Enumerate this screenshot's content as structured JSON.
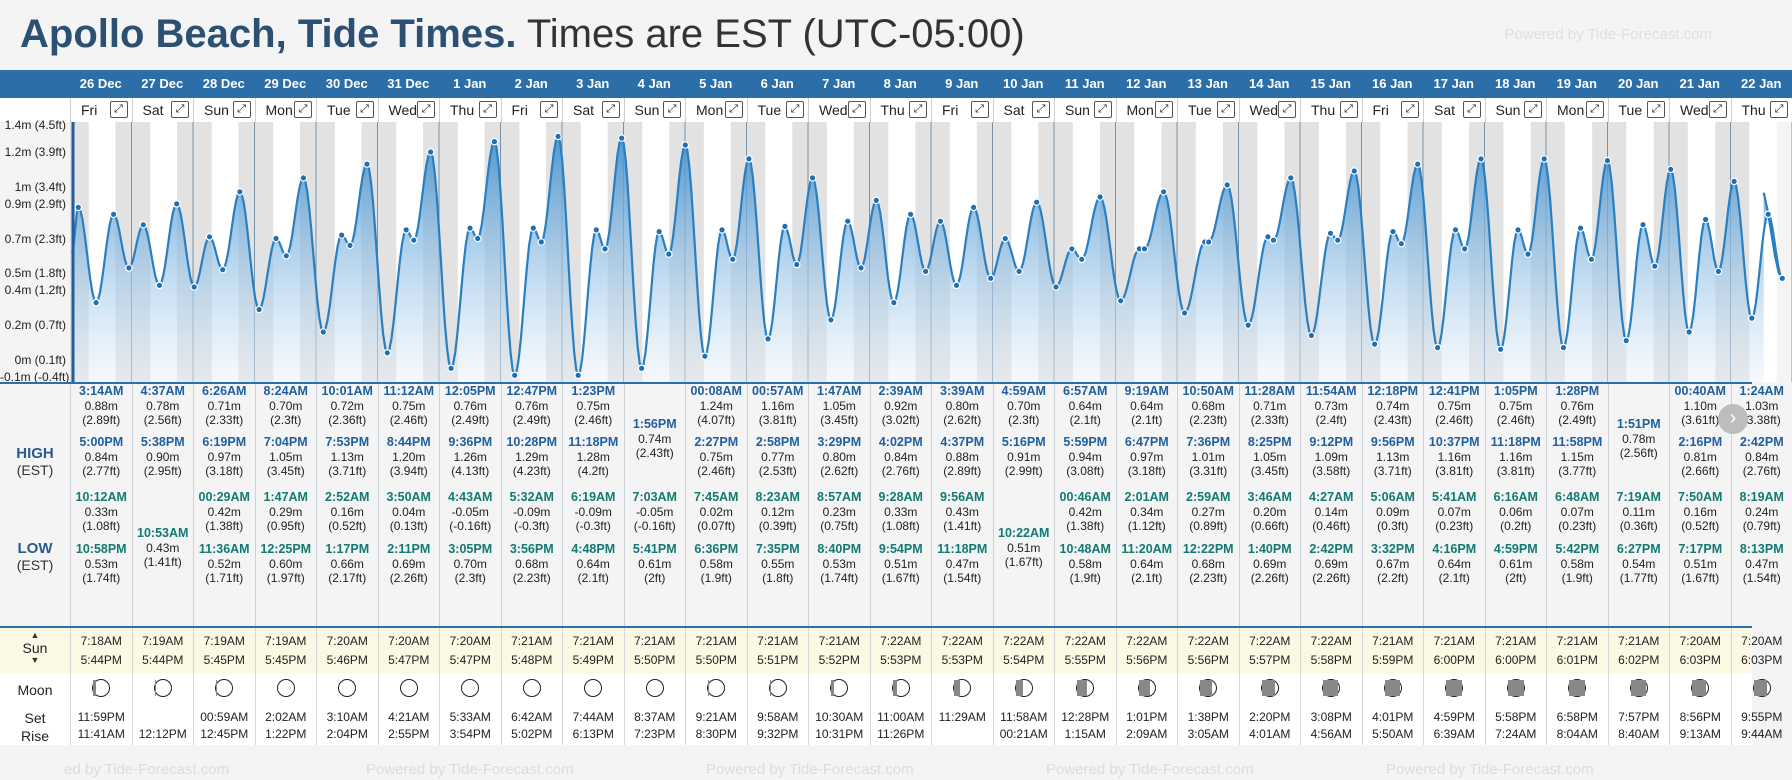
{
  "header": {
    "location": "Apollo Beach, Tide Times.",
    "timezone": "Times are EST (UTC-05:00)",
    "watermark": "Powered by Tide-Forecast.com",
    "bottom_watermark": "Powered by Tide-Forecast.com",
    "bottom_watermark_left": "ed by Tide-Forecast.com"
  },
  "y_axis": {
    "labels": [
      "1.2m (3.9ft)",
      "1m (3.4ft)",
      "0.9m (2.9ft)",
      "0.7m (2.3ft)",
      "0.5m (1.8ft)",
      "0.4m (1.2ft)",
      "0.2m (0.7ft)",
      "0m (0.1ft)",
      "-0.1m (-0.4ft)"
    ],
    "values": [
      1.2,
      1.0,
      0.9,
      0.7,
      0.5,
      0.4,
      0.2,
      0.0,
      -0.1
    ],
    "top_cut_label": "1.4m (4.5ft)",
    "range": [
      -0.1,
      1.35
    ]
  },
  "labels": {
    "high": "HIGH",
    "high_tz": "(EST)",
    "low": "LOW",
    "low_tz": "(EST)",
    "sun": "Sun",
    "moon": "Moon",
    "set": "Set",
    "rise": "Rise",
    "expand_icon": "⤢",
    "next_icon": "›"
  },
  "days": [
    {
      "date": "26 Dec",
      "dow": "Fri",
      "high": [
        {
          "t": "3:14AM",
          "m": "0.88m",
          "f": "(2.89ft)"
        },
        {
          "t": "5:00PM",
          "m": "0.84m",
          "f": "(2.77ft)"
        }
      ],
      "low": [
        {
          "t": "10:12AM",
          "m": "0.33m",
          "f": "(1.08ft)"
        },
        {
          "t": "10:58PM",
          "m": "0.53m",
          "f": "(1.74ft)"
        }
      ],
      "sunrise": "7:18AM",
      "sunset": "5:44PM",
      "phase": 0.85,
      "moonset": "11:59PM",
      "moonrise": "11:41AM"
    },
    {
      "date": "27 Dec",
      "dow": "Sat",
      "high": [
        {
          "t": "4:37AM",
          "m": "0.78m",
          "f": "(2.56ft)"
        },
        {
          "t": "5:38PM",
          "m": "0.90m",
          "f": "(2.95ft)"
        }
      ],
      "low": [
        {
          "t": "10:53AM",
          "m": "0.43m",
          "f": "(1.41ft)"
        }
      ],
      "sunrise": "7:19AM",
      "sunset": "5:44PM",
      "phase": 0.9,
      "moonset": "",
      "moonrise": "12:12PM"
    },
    {
      "date": "28 Dec",
      "dow": "Sun",
      "high": [
        {
          "t": "6:26AM",
          "m": "0.71m",
          "f": "(2.33ft)"
        },
        {
          "t": "6:19PM",
          "m": "0.97m",
          "f": "(3.18ft)"
        }
      ],
      "low": [
        {
          "t": "00:29AM",
          "m": "0.42m",
          "f": "(1.38ft)"
        },
        {
          "t": "11:36AM",
          "m": "0.52m",
          "f": "(1.71ft)"
        }
      ],
      "sunrise": "7:19AM",
      "sunset": "5:45PM",
      "phase": 0.95,
      "moonset": "00:59AM",
      "moonrise": "12:45PM"
    },
    {
      "date": "29 Dec",
      "dow": "Mon",
      "high": [
        {
          "t": "8:24AM",
          "m": "0.70m",
          "f": "(2.3ft)"
        },
        {
          "t": "7:04PM",
          "m": "1.05m",
          "f": "(3.45ft)"
        }
      ],
      "low": [
        {
          "t": "1:47AM",
          "m": "0.29m",
          "f": "(0.95ft)"
        },
        {
          "t": "12:25PM",
          "m": "0.60m",
          "f": "(1.97ft)"
        }
      ],
      "sunrise": "7:19AM",
      "sunset": "5:45PM",
      "phase": 1.0,
      "moonset": "2:02AM",
      "moonrise": "1:22PM"
    },
    {
      "date": "30 Dec",
      "dow": "Tue",
      "high": [
        {
          "t": "10:01AM",
          "m": "0.72m",
          "f": "(2.36ft)"
        },
        {
          "t": "7:53PM",
          "m": "1.13m",
          "f": "(3.71ft)"
        }
      ],
      "low": [
        {
          "t": "2:52AM",
          "m": "0.16m",
          "f": "(0.52ft)"
        },
        {
          "t": "1:17PM",
          "m": "0.66m",
          "f": "(2.17ft)"
        }
      ],
      "sunrise": "7:20AM",
      "sunset": "5:46PM",
      "phase": 1.0,
      "moonset": "3:10AM",
      "moonrise": "2:04PM"
    },
    {
      "date": "31 Dec",
      "dow": "Wed",
      "high": [
        {
          "t": "11:12AM",
          "m": "0.75m",
          "f": "(2.46ft)"
        },
        {
          "t": "8:44PM",
          "m": "1.20m",
          "f": "(3.94ft)"
        }
      ],
      "low": [
        {
          "t": "3:50AM",
          "m": "0.04m",
          "f": "(0.13ft)"
        },
        {
          "t": "2:11PM",
          "m": "0.69m",
          "f": "(2.26ft)"
        }
      ],
      "sunrise": "7:20AM",
      "sunset": "5:47PM",
      "phase": 1.0,
      "moonset": "4:21AM",
      "moonrise": "2:55PM"
    },
    {
      "date": "1 Jan",
      "dow": "Thu",
      "high": [
        {
          "t": "12:05PM",
          "m": "0.76m",
          "f": "(2.49ft)"
        },
        {
          "t": "9:36PM",
          "m": "1.26m",
          "f": "(4.13ft)"
        }
      ],
      "low": [
        {
          "t": "4:43AM",
          "m": "-0.05m",
          "f": "(-0.16ft)"
        },
        {
          "t": "3:05PM",
          "m": "0.70m",
          "f": "(2.3ft)"
        }
      ],
      "sunrise": "7:20AM",
      "sunset": "5:47PM",
      "phase": 1.0,
      "moonset": "5:33AM",
      "moonrise": "3:54PM"
    },
    {
      "date": "2 Jan",
      "dow": "Fri",
      "high": [
        {
          "t": "12:47PM",
          "m": "0.76m",
          "f": "(2.49ft)"
        },
        {
          "t": "10:28PM",
          "m": "1.29m",
          "f": "(4.23ft)"
        }
      ],
      "low": [
        {
          "t": "5:32AM",
          "m": "-0.09m",
          "f": "(-0.3ft)"
        },
        {
          "t": "3:56PM",
          "m": "0.68m",
          "f": "(2.23ft)"
        }
      ],
      "sunrise": "7:21AM",
      "sunset": "5:48PM",
      "phase": 1.0,
      "moonset": "6:42AM",
      "moonrise": "5:02PM"
    },
    {
      "date": "3 Jan",
      "dow": "Sat",
      "high": [
        {
          "t": "1:23PM",
          "m": "0.75m",
          "f": "(2.46ft)"
        },
        {
          "t": "11:18PM",
          "m": "1.28m",
          "f": "(4.2ft)"
        }
      ],
      "low": [
        {
          "t": "6:19AM",
          "m": "-0.09m",
          "f": "(-0.3ft)"
        },
        {
          "t": "4:48PM",
          "m": "0.64m",
          "f": "(2.1ft)"
        }
      ],
      "sunrise": "7:21AM",
      "sunset": "5:49PM",
      "phase": 1.0,
      "moonset": "7:44AM",
      "moonrise": "6:13PM"
    },
    {
      "date": "4 Jan",
      "dow": "Sun",
      "high": [
        {
          "t": "1:56PM",
          "m": "0.74m",
          "f": "(2.43ft)"
        }
      ],
      "low": [
        {
          "t": "7:03AM",
          "m": "-0.05m",
          "f": "(-0.16ft)"
        },
        {
          "t": "5:41PM",
          "m": "0.61m",
          "f": "(2ft)"
        }
      ],
      "sunrise": "7:21AM",
      "sunset": "5:50PM",
      "phase": 1.0,
      "moonset": "8:37AM",
      "moonrise": "7:23PM"
    },
    {
      "date": "5 Jan",
      "dow": "Mon",
      "high": [
        {
          "t": "00:08AM",
          "m": "1.24m",
          "f": "(4.07ft)"
        },
        {
          "t": "2:27PM",
          "m": "0.75m",
          "f": "(2.46ft)"
        }
      ],
      "low": [
        {
          "t": "7:45AM",
          "m": "0.02m",
          "f": "(0.07ft)"
        },
        {
          "t": "6:36PM",
          "m": "0.58m",
          "f": "(1.9ft)"
        }
      ],
      "sunrise": "7:21AM",
      "sunset": "5:50PM",
      "phase": 0.96,
      "moonset": "9:21AM",
      "moonrise": "8:30PM"
    },
    {
      "date": "6 Jan",
      "dow": "Tue",
      "high": [
        {
          "t": "00:57AM",
          "m": "1.16m",
          "f": "(3.81ft)"
        },
        {
          "t": "2:58PM",
          "m": "0.77m",
          "f": "(2.53ft)"
        }
      ],
      "low": [
        {
          "t": "8:23AM",
          "m": "0.12m",
          "f": "(0.39ft)"
        },
        {
          "t": "7:35PM",
          "m": "0.55m",
          "f": "(1.8ft)"
        }
      ],
      "sunrise": "7:21AM",
      "sunset": "5:51PM",
      "phase": 0.9,
      "moonset": "9:58AM",
      "moonrise": "9:32PM"
    },
    {
      "date": "7 Jan",
      "dow": "Wed",
      "high": [
        {
          "t": "1:47AM",
          "m": "1.05m",
          "f": "(3.45ft)"
        },
        {
          "t": "3:29PM",
          "m": "0.80m",
          "f": "(2.62ft)"
        }
      ],
      "low": [
        {
          "t": "8:57AM",
          "m": "0.23m",
          "f": "(0.75ft)"
        },
        {
          "t": "8:40PM",
          "m": "0.53m",
          "f": "(1.74ft)"
        }
      ],
      "sunrise": "7:21AM",
      "sunset": "5:52PM",
      "phase": 0.82,
      "moonset": "10:30AM",
      "moonrise": "10:31PM"
    },
    {
      "date": "8 Jan",
      "dow": "Thu",
      "high": [
        {
          "t": "2:39AM",
          "m": "0.92m",
          "f": "(3.02ft)"
        },
        {
          "t": "4:02PM",
          "m": "0.84m",
          "f": "(2.76ft)"
        }
      ],
      "low": [
        {
          "t": "9:28AM",
          "m": "0.33m",
          "f": "(1.08ft)"
        },
        {
          "t": "9:54PM",
          "m": "0.51m",
          "f": "(1.67ft)"
        }
      ],
      "sunrise": "7:22AM",
      "sunset": "5:53PM",
      "phase": 0.72,
      "moonset": "11:00AM",
      "moonrise": "11:26PM"
    },
    {
      "date": "9 Jan",
      "dow": "Fri",
      "high": [
        {
          "t": "3:39AM",
          "m": "0.80m",
          "f": "(2.62ft)"
        },
        {
          "t": "4:37PM",
          "m": "0.88m",
          "f": "(2.89ft)"
        }
      ],
      "low": [
        {
          "t": "9:56AM",
          "m": "0.43m",
          "f": "(1.41ft)"
        },
        {
          "t": "11:18PM",
          "m": "0.47m",
          "f": "(1.54ft)"
        }
      ],
      "sunrise": "7:22AM",
      "sunset": "5:53PM",
      "phase": 0.62,
      "moonset": "11:29AM",
      "moonrise": ""
    },
    {
      "date": "10 Jan",
      "dow": "Sat",
      "high": [
        {
          "t": "4:59AM",
          "m": "0.70m",
          "f": "(2.3ft)"
        },
        {
          "t": "5:16PM",
          "m": "0.91m",
          "f": "(2.99ft)"
        }
      ],
      "low": [
        {
          "t": "10:22AM",
          "m": "0.51m",
          "f": "(1.67ft)"
        }
      ],
      "sunrise": "7:22AM",
      "sunset": "5:54PM",
      "phase": 0.52,
      "moonset": "11:58AM",
      "moonrise": "00:21AM"
    },
    {
      "date": "11 Jan",
      "dow": "Sun",
      "high": [
        {
          "t": "6:57AM",
          "m": "0.64m",
          "f": "(2.1ft)"
        },
        {
          "t": "5:59PM",
          "m": "0.94m",
          "f": "(3.08ft)"
        }
      ],
      "low": [
        {
          "t": "00:46AM",
          "m": "0.42m",
          "f": "(1.38ft)"
        },
        {
          "t": "10:48AM",
          "m": "0.58m",
          "f": "(1.9ft)"
        }
      ],
      "sunrise": "7:22AM",
      "sunset": "5:55PM",
      "phase": 0.42,
      "moonset": "12:28PM",
      "moonrise": "1:15AM"
    },
    {
      "date": "12 Jan",
      "dow": "Mon",
      "high": [
        {
          "t": "9:19AM",
          "m": "0.64m",
          "f": "(2.1ft)"
        },
        {
          "t": "6:47PM",
          "m": "0.97m",
          "f": "(3.18ft)"
        }
      ],
      "low": [
        {
          "t": "2:01AM",
          "m": "0.34m",
          "f": "(1.12ft)"
        },
        {
          "t": "11:20AM",
          "m": "0.64m",
          "f": "(2.1ft)"
        }
      ],
      "sunrise": "7:22AM",
      "sunset": "5:56PM",
      "phase": 0.32,
      "moonset": "1:01PM",
      "moonrise": "2:09AM"
    },
    {
      "date": "13 Jan",
      "dow": "Tue",
      "high": [
        {
          "t": "10:50AM",
          "m": "0.68m",
          "f": "(2.23ft)"
        },
        {
          "t": "7:36PM",
          "m": "1.01m",
          "f": "(3.31ft)"
        }
      ],
      "low": [
        {
          "t": "2:59AM",
          "m": "0.27m",
          "f": "(0.89ft)"
        },
        {
          "t": "12:22PM",
          "m": "0.68m",
          "f": "(2.23ft)"
        }
      ],
      "sunrise": "7:22AM",
      "sunset": "5:56PM",
      "phase": 0.24,
      "moonset": "1:38PM",
      "moonrise": "3:05AM"
    },
    {
      "date": "14 Jan",
      "dow": "Wed",
      "high": [
        {
          "t": "11:28AM",
          "m": "0.71m",
          "f": "(2.33ft)"
        },
        {
          "t": "8:25PM",
          "m": "1.05m",
          "f": "(3.45ft)"
        }
      ],
      "low": [
        {
          "t": "3:46AM",
          "m": "0.20m",
          "f": "(0.66ft)"
        },
        {
          "t": "1:40PM",
          "m": "0.69m",
          "f": "(2.26ft)"
        }
      ],
      "sunrise": "7:22AM",
      "sunset": "5:57PM",
      "phase": 0.16,
      "moonset": "2:20PM",
      "moonrise": "4:01AM"
    },
    {
      "date": "15 Jan",
      "dow": "Thu",
      "high": [
        {
          "t": "11:54AM",
          "m": "0.73m",
          "f": "(2.4ft)"
        },
        {
          "t": "9:12PM",
          "m": "1.09m",
          "f": "(3.58ft)"
        }
      ],
      "low": [
        {
          "t": "4:27AM",
          "m": "0.14m",
          "f": "(0.46ft)"
        },
        {
          "t": "2:42PM",
          "m": "0.69m",
          "f": "(2.26ft)"
        }
      ],
      "sunrise": "7:22AM",
      "sunset": "5:58PM",
      "phase": 0.1,
      "moonset": "3:08PM",
      "moonrise": "4:56AM"
    },
    {
      "date": "16 Jan",
      "dow": "Fri",
      "high": [
        {
          "t": "12:18PM",
          "m": "0.74m",
          "f": "(2.43ft)"
        },
        {
          "t": "9:56PM",
          "m": "1.13m",
          "f": "(3.71ft)"
        }
      ],
      "low": [
        {
          "t": "5:06AM",
          "m": "0.09m",
          "f": "(0.3ft)"
        },
        {
          "t": "3:32PM",
          "m": "0.67m",
          "f": "(2.2ft)"
        }
      ],
      "sunrise": "7:21AM",
      "sunset": "5:59PM",
      "phase": 0.05,
      "moonset": "4:01PM",
      "moonrise": "5:50AM"
    },
    {
      "date": "17 Jan",
      "dow": "Sat",
      "high": [
        {
          "t": "12:41PM",
          "m": "0.75m",
          "f": "(2.46ft)"
        },
        {
          "t": "10:37PM",
          "m": "1.16m",
          "f": "(3.81ft)"
        }
      ],
      "low": [
        {
          "t": "5:41AM",
          "m": "0.07m",
          "f": "(0.23ft)"
        },
        {
          "t": "4:16PM",
          "m": "0.64m",
          "f": "(2.1ft)"
        }
      ],
      "sunrise": "7:21AM",
      "sunset": "6:00PM",
      "phase": 0.02,
      "moonset": "4:59PM",
      "moonrise": "6:39AM"
    },
    {
      "date": "18 Jan",
      "dow": "Sun",
      "high": [
        {
          "t": "1:05PM",
          "m": "0.75m",
          "f": "(2.46ft)"
        },
        {
          "t": "11:18PM",
          "m": "1.16m",
          "f": "(3.81ft)"
        }
      ],
      "low": [
        {
          "t": "6:16AM",
          "m": "0.06m",
          "f": "(0.2ft)"
        },
        {
          "t": "4:59PM",
          "m": "0.61m",
          "f": "(2ft)"
        }
      ],
      "sunrise": "7:21AM",
      "sunset": "6:00PM",
      "phase": 0.0,
      "moonset": "5:58PM",
      "moonrise": "7:24AM"
    },
    {
      "date": "19 Jan",
      "dow": "Mon",
      "high": [
        {
          "t": "1:28PM",
          "m": "0.76m",
          "f": "(2.49ft)"
        },
        {
          "t": "11:58PM",
          "m": "1.15m",
          "f": "(3.77ft)"
        }
      ],
      "low": [
        {
          "t": "6:48AM",
          "m": "0.07m",
          "f": "(0.23ft)"
        },
        {
          "t": "5:42PM",
          "m": "0.58m",
          "f": "(1.9ft)"
        }
      ],
      "sunrise": "7:21AM",
      "sunset": "6:01PM",
      "phase": 0.02,
      "moonset": "6:58PM",
      "moonrise": "8:04AM"
    },
    {
      "date": "20 Jan",
      "dow": "Tue",
      "high": [
        {
          "t": "1:51PM",
          "m": "0.78m",
          "f": "(2.56ft)"
        }
      ],
      "low": [
        {
          "t": "7:19AM",
          "m": "0.11m",
          "f": "(0.36ft)"
        },
        {
          "t": "6:27PM",
          "m": "0.54m",
          "f": "(1.77ft)"
        }
      ],
      "sunrise": "7:21AM",
      "sunset": "6:02PM",
      "phase": 0.06,
      "moonset": "7:57PM",
      "moonrise": "8:40AM"
    },
    {
      "date": "21 Jan",
      "dow": "Wed",
      "high": [
        {
          "t": "00:40AM",
          "m": "1.10m",
          "f": "(3.61ft)"
        },
        {
          "t": "2:16PM",
          "m": "0.81m",
          "f": "(2.66ft)"
        }
      ],
      "low": [
        {
          "t": "7:50AM",
          "m": "0.16m",
          "f": "(0.52ft)"
        },
        {
          "t": "7:17PM",
          "m": "0.51m",
          "f": "(1.67ft)"
        }
      ],
      "sunrise": "7:20AM",
      "sunset": "6:03PM",
      "phase": 0.12,
      "moonset": "8:56PM",
      "moonrise": "9:13AM"
    },
    {
      "date": "22 Jan",
      "dow": "Thu",
      "high": [
        {
          "t": "1:24AM",
          "m": "1.03m",
          "f": "(3.38ft)"
        },
        {
          "t": "2:42PM",
          "m": "0.84m",
          "f": "(2.76ft)"
        }
      ],
      "low": [
        {
          "t": "8:19AM",
          "m": "0.24m",
          "f": "(0.79ft)"
        },
        {
          "t": "8:13PM",
          "m": "0.47m",
          "f": "(1.54ft)"
        }
      ],
      "sunrise": "7:20AM",
      "sunset": "6:03PM",
      "phase": 0.18,
      "moonset": "9:55PM",
      "moonrise": "9:44AM"
    }
  ],
  "colors": {
    "header_blue": "#2c6ea8",
    "title_blue": "#2c5072",
    "high_time": "#1f5f9e",
    "low_time": "#127a73",
    "sun_band": "#fbf8e3",
    "tide_fill_top": "#3f8fcf",
    "tide_fill_bottom": "#e9f2fa"
  }
}
